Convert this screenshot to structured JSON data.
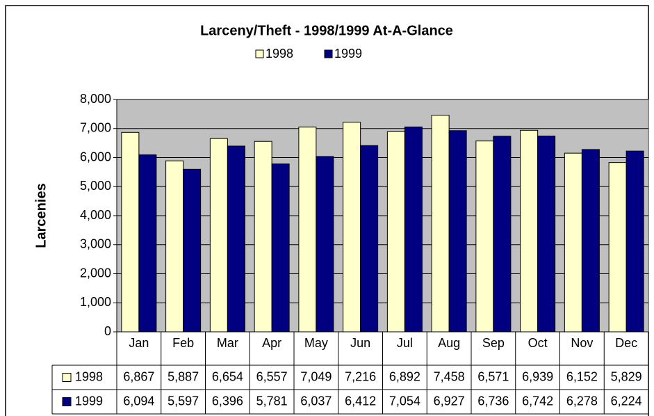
{
  "chart_data": {
    "type": "bar",
    "title": "Larceny/Theft - 1998/1999 At-A-Glance",
    "y_label": "Larcenies",
    "categories": [
      "Jan",
      "Feb",
      "Mar",
      "Apr",
      "May",
      "Jun",
      "Jul",
      "Aug",
      "Sep",
      "Oct",
      "Nov",
      "Dec"
    ],
    "series": [
      {
        "name": "1998",
        "color": "#ffffcc",
        "values": [
          6867,
          5887,
          6654,
          6557,
          7049,
          7216,
          6892,
          7458,
          6571,
          6939,
          6152,
          5829
        ],
        "value_labels": [
          "6,867",
          "5,887",
          "6,654",
          "6,557",
          "7,049",
          "7,216",
          "6,892",
          "7,458",
          "6,571",
          "6,939",
          "6,152",
          "5,829"
        ]
      },
      {
        "name": "1999",
        "color": "#000080",
        "values": [
          6094,
          5597,
          6396,
          5781,
          6037,
          6412,
          7054,
          6927,
          6736,
          6742,
          6278,
          6224
        ],
        "value_labels": [
          "6,094",
          "5,597",
          "6,396",
          "5,781",
          "6,037",
          "6,412",
          "7,054",
          "6,927",
          "6,736",
          "6,742",
          "6,278",
          "6,224"
        ]
      }
    ],
    "ylim": [
      0,
      8000
    ],
    "yticks": [
      0,
      {
        "value": 1000,
        "label": "1,000"
      },
      {
        "value": 2000,
        "label": "2,000"
      },
      {
        "value": 3000,
        "label": "3,000"
      },
      {
        "value": 4000,
        "label": "4,000"
      },
      {
        "value": 5000,
        "label": "5,000"
      },
      {
        "value": 6000,
        "label": "6,000"
      },
      {
        "value": 7000,
        "label": "7,000"
      },
      {
        "value": 8000,
        "label": "8,000"
      }
    ],
    "grid": true,
    "legend": "top",
    "plot_background": "#c0c0c0"
  }
}
